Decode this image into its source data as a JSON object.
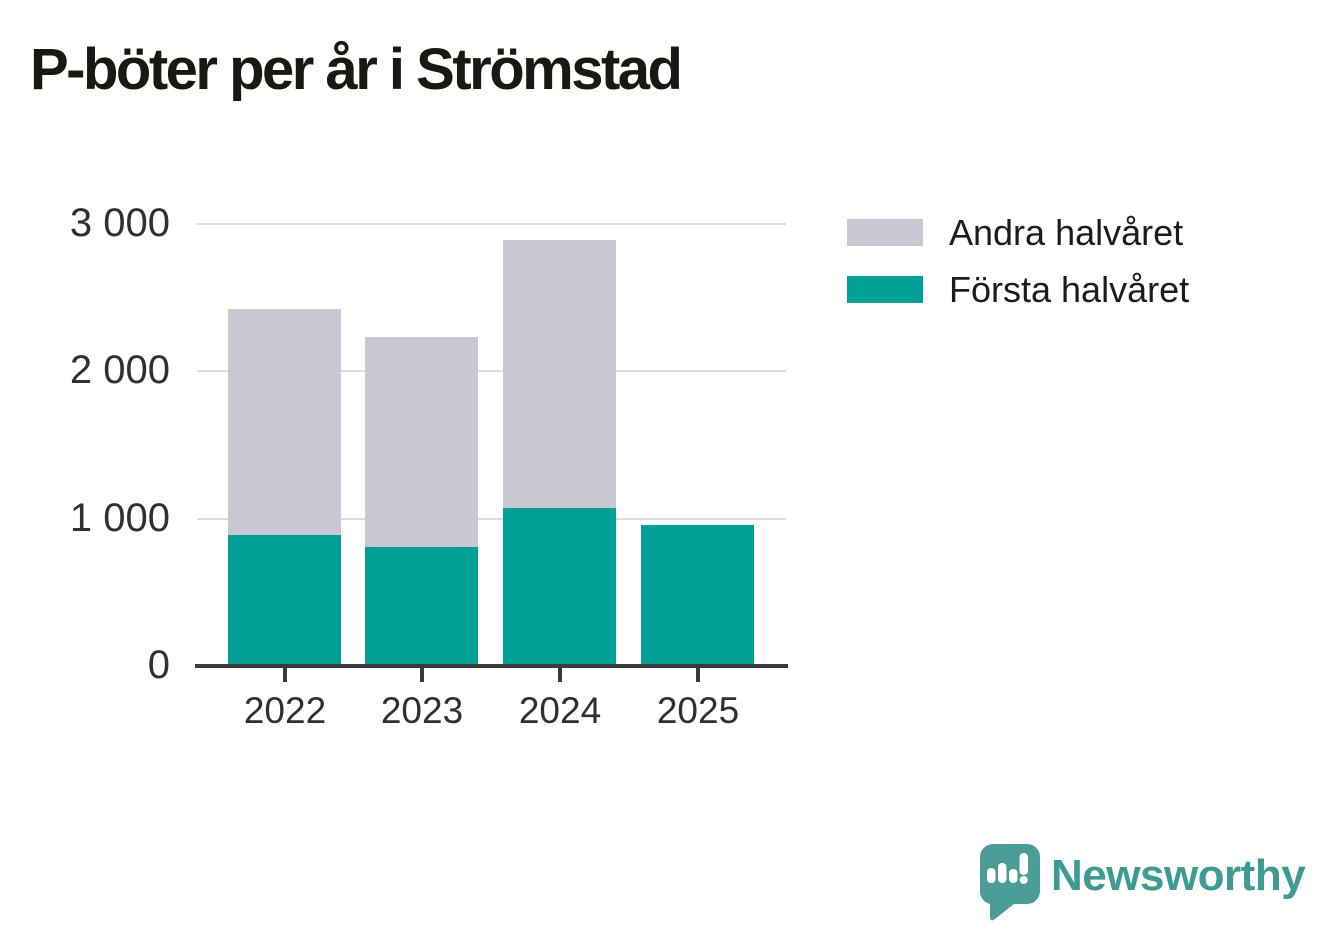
{
  "title": "P-böter per år i Strömstad",
  "legend": [
    {
      "label": "Andra halvåret",
      "color": "#c9c7d2"
    },
    {
      "label": "Första halvåret",
      "color": "#00a096"
    }
  ],
  "branding": {
    "wordmark": "Newsworthy",
    "logo_color": "#4a9c97",
    "wordmark_color": "#3d9b94"
  },
  "colors": {
    "first_half": "#00a096",
    "second_half": "#c9c7d2",
    "gridline": "#dcdcdc",
    "axis": "#3a3a3a",
    "label_text": "#303030",
    "title_text": "#191913"
  },
  "chart_data": {
    "type": "bar",
    "stacked": true,
    "title": "P-böter per år i Strömstad",
    "categories": [
      "2022",
      "2023",
      "2024",
      "2025"
    ],
    "series": [
      {
        "name": "Första halvåret",
        "color": "#00a096",
        "values": [
          890,
          805,
          1070,
          955
        ]
      },
      {
        "name": "Andra halvåret",
        "color": "#c9c7d2",
        "values": [
          1530,
          1425,
          1820,
          0
        ]
      }
    ],
    "totals": [
      2420,
      2230,
      2890,
      955
    ],
    "xlabel": "",
    "ylabel": "",
    "ylim": [
      0,
      3000
    ],
    "yticks": [
      {
        "value": 0,
        "label": "0"
      },
      {
        "value": 1000,
        "label": "1 000"
      },
      {
        "value": 2000,
        "label": "2 000"
      },
      {
        "value": 3000,
        "label": "3 000"
      }
    ],
    "grid": true,
    "legend_position": "top-right"
  }
}
